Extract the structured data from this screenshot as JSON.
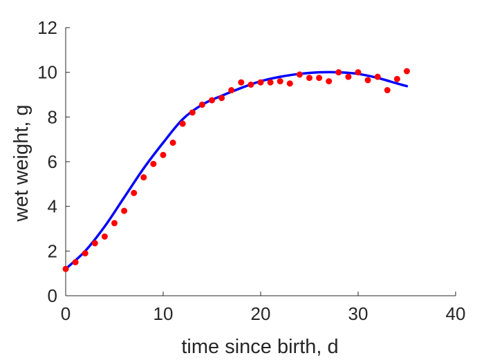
{
  "chart_data": {
    "type": "scatter",
    "xlabel": "time since birth, d",
    "ylabel": "wet weight, g",
    "xlim": [
      0,
      40
    ],
    "ylim": [
      0,
      12
    ],
    "xticks": [
      0,
      10,
      20,
      30,
      40
    ],
    "yticks": [
      0,
      2,
      4,
      6,
      8,
      10,
      12
    ],
    "grid": false,
    "series": [
      {
        "kind": "points",
        "color": "#ff0000",
        "x": [
          0,
          1,
          2,
          3,
          4,
          5,
          6,
          7,
          8,
          9,
          10,
          11,
          12,
          13,
          14,
          15,
          16,
          17,
          18,
          19,
          20,
          21,
          22,
          23,
          24,
          25,
          26,
          27,
          28,
          29,
          30,
          31,
          32,
          33,
          34,
          35
        ],
        "y": [
          1.2,
          1.5,
          1.9,
          2.35,
          2.65,
          3.25,
          3.8,
          4.6,
          5.3,
          5.9,
          6.3,
          6.85,
          7.7,
          8.2,
          8.55,
          8.75,
          8.85,
          9.2,
          9.55,
          9.45,
          9.55,
          9.55,
          9.6,
          9.5,
          9.9,
          9.75,
          9.75,
          9.6,
          10.0,
          9.8,
          10.0,
          9.65,
          9.8,
          9.2,
          9.7,
          10.05
        ]
      },
      {
        "kind": "line",
        "color": "#0000ff",
        "x": [
          0,
          2,
          4,
          6,
          8,
          10,
          12,
          14,
          16,
          18,
          20,
          22,
          24,
          26,
          28,
          30,
          32,
          34,
          35
        ],
        "y": [
          1.2,
          2.0,
          3.1,
          4.4,
          5.7,
          6.85,
          7.9,
          8.55,
          8.95,
          9.3,
          9.6,
          9.8,
          9.93,
          10.0,
          10.0,
          9.93,
          9.75,
          9.5,
          9.38
        ]
      }
    ]
  }
}
